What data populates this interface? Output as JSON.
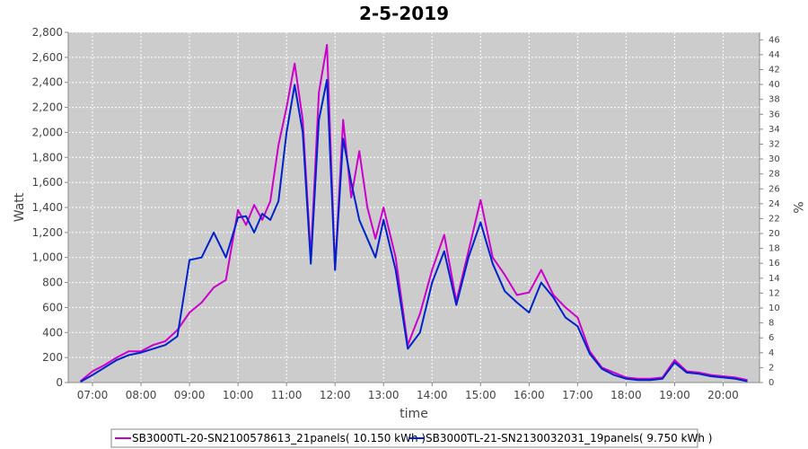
{
  "chart_data": {
    "type": "line",
    "title": "2-5-2019",
    "xlabel": "time",
    "ylabel": "Watt",
    "y2label": "%",
    "ylim": [
      0,
      2800
    ],
    "y2lim": [
      0,
      47
    ],
    "xlim": [
      "06:30",
      "20:45"
    ],
    "grid": true,
    "legend_position": "bottom",
    "x_ticks": [
      "07:00",
      "08:00",
      "09:00",
      "10:00",
      "11:00",
      "12:00",
      "13:00",
      "14:00",
      "15:00",
      "16:00",
      "17:00",
      "18:00",
      "19:00",
      "20:00"
    ],
    "y_ticks": [
      "0",
      "200",
      "400",
      "600",
      "800",
      "1,000",
      "1,200",
      "1,400",
      "1,600",
      "1,800",
      "2,000",
      "2,200",
      "2,400",
      "2,600",
      "2,800"
    ],
    "y2_ticks": [
      "0",
      "2",
      "4",
      "6",
      "8",
      "10",
      "12",
      "14",
      "16",
      "18",
      "20",
      "22",
      "24",
      "26",
      "28",
      "30",
      "32",
      "34",
      "36",
      "38",
      "40",
      "42",
      "44",
      "46"
    ],
    "x": [
      "06:45",
      "07:00",
      "07:15",
      "07:30",
      "07:45",
      "08:00",
      "08:15",
      "08:30",
      "08:45",
      "09:00",
      "09:15",
      "09:30",
      "09:45",
      "10:00",
      "10:10",
      "10:20",
      "10:30",
      "10:40",
      "10:50",
      "11:00",
      "11:10",
      "11:20",
      "11:30",
      "11:40",
      "11:50",
      "12:00",
      "12:10",
      "12:20",
      "12:30",
      "12:40",
      "12:50",
      "13:00",
      "13:15",
      "13:30",
      "13:45",
      "14:00",
      "14:15",
      "14:30",
      "14:45",
      "15:00",
      "15:15",
      "15:30",
      "15:45",
      "16:00",
      "16:15",
      "16:30",
      "16:45",
      "17:00",
      "17:15",
      "17:30",
      "17:45",
      "18:00",
      "18:15",
      "18:30",
      "18:45",
      "19:00",
      "19:15",
      "19:30",
      "19:45",
      "20:00",
      "20:15",
      "20:30"
    ],
    "series": [
      {
        "name": "SB3000TL-20-SN2100578613_21panels( 10.150 kWh )",
        "color": "#cc00cc",
        "values": [
          10,
          90,
          140,
          200,
          250,
          250,
          300,
          330,
          420,
          560,
          640,
          760,
          820,
          1380,
          1260,
          1420,
          1300,
          1450,
          1900,
          2200,
          2550,
          2100,
          1000,
          2320,
          2700,
          900,
          2100,
          1480,
          1850,
          1400,
          1150,
          1400,
          1000,
          300,
          550,
          900,
          1180,
          650,
          1050,
          1460,
          1000,
          860,
          700,
          720,
          900,
          700,
          600,
          520,
          250,
          120,
          80,
          40,
          30,
          30,
          40,
          180,
          90,
          80,
          60,
          50,
          40,
          20
        ],
        "unit": "W"
      },
      {
        "name": "SB3000TL-21-SN2130032031_19panels( 9.750 kWh )",
        "color": "#0022cc",
        "values": [
          5,
          60,
          120,
          180,
          220,
          240,
          270,
          300,
          370,
          980,
          1000,
          1200,
          1000,
          1320,
          1330,
          1200,
          1350,
          1300,
          1450,
          2000,
          2380,
          2000,
          950,
          2100,
          2420,
          900,
          1950,
          1600,
          1300,
          1150,
          1000,
          1300,
          900,
          270,
          400,
          800,
          1050,
          620,
          1000,
          1280,
          950,
          730,
          640,
          560,
          800,
          680,
          520,
          450,
          230,
          110,
          60,
          30,
          20,
          20,
          30,
          160,
          80,
          70,
          50,
          40,
          30,
          10
        ],
        "unit": "W"
      }
    ]
  },
  "legend": {
    "items": [
      {
        "label": "SB3000TL-20-SN2100578613_21panels( 10.150 kWh )",
        "color": "#cc00cc"
      },
      {
        "label": "SB3000TL-21-SN2130032031_19panels( 9.750 kWh )",
        "color": "#0022cc"
      }
    ]
  }
}
